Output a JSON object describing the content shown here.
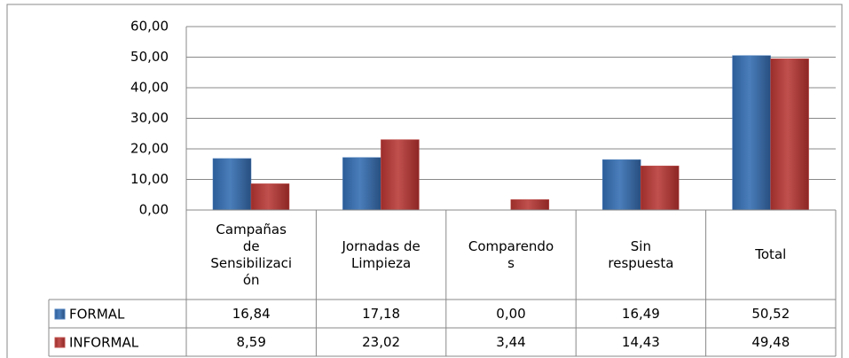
{
  "chart_data": {
    "type": "bar",
    "categories": [
      "Campañas de Sensibilización",
      "Jornadas de Limpieza",
      "Comparendos",
      "Sin respuesta",
      "Total"
    ],
    "series": [
      {
        "name": "FORMAL",
        "color": "#4a7ebb",
        "values": [
          16.84,
          17.18,
          0.0,
          16.49,
          50.52
        ],
        "value_labels": [
          "16,84",
          "17,18",
          "0,00",
          "16,49",
          "50,52"
        ]
      },
      {
        "name": "INFORMAL",
        "color": "#c0504d",
        "values": [
          8.59,
          23.02,
          3.44,
          14.43,
          49.48
        ],
        "value_labels": [
          "8,59",
          "23,02",
          "3,44",
          "14,43",
          "49,48"
        ]
      }
    ],
    "ylim": [
      0,
      60
    ],
    "yticks": [
      {
        "value": 0,
        "label": "0,00"
      },
      {
        "value": 10,
        "label": "10,00"
      },
      {
        "value": 20,
        "label": "20,00"
      },
      {
        "value": 30,
        "label": "30,00"
      },
      {
        "value": 40,
        "label": "40,00"
      },
      {
        "value": 50,
        "label": "50,00"
      },
      {
        "value": 60,
        "label": "60,00"
      }
    ],
    "grid": true
  }
}
